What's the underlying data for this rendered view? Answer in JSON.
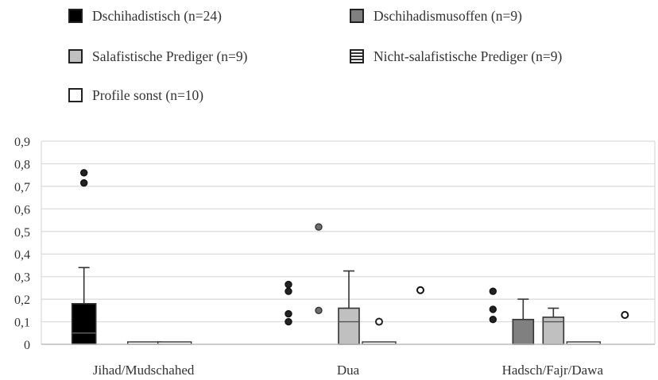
{
  "chart_data": {
    "type": "boxplot",
    "categories": [
      "Jihad/Mudschahed",
      "Dua",
      "Hadsch/Fajr/Dawa"
    ],
    "ylim": [
      0,
      0.9
    ],
    "yticks": [
      "0",
      "0,1",
      "0,2",
      "0,3",
      "0,4",
      "0,5",
      "0,6",
      "0,7",
      "0,8",
      "0,9"
    ],
    "grid": true,
    "legend_position": "top",
    "series": [
      {
        "name": "Dschihadistisch (n=24)",
        "fill": "#000000",
        "stroke": "#333333",
        "pattern": "solid",
        "boxes": [
          {
            "category": 0,
            "q1": 0,
            "median": 0.05,
            "q3": 0.18,
            "whisker_low": 0,
            "whisker_high": 0.34,
            "outliers": [
              0.715,
              0.76
            ]
          },
          {
            "category": 1,
            "q1": 0,
            "median": 0,
            "q3": 0,
            "whisker_low": 0,
            "whisker_high": 0,
            "outliers": [
              0.1,
              0.135,
              0.235,
              0.265
            ]
          },
          {
            "category": 2,
            "q1": 0,
            "median": 0,
            "q3": 0,
            "whisker_low": 0,
            "whisker_high": 0,
            "outliers": [
              0.11,
              0.155,
              0.235
            ]
          }
        ]
      },
      {
        "name": "Dschihadismusoffen (n=9)",
        "fill": "#808080",
        "stroke": "#333333",
        "pattern": "solid",
        "boxes": [
          {
            "category": 0,
            "q1": 0,
            "median": 0,
            "q3": 0,
            "whisker_low": 0,
            "whisker_high": 0,
            "outliers": []
          },
          {
            "category": 1,
            "q1": 0,
            "median": 0,
            "q3": 0,
            "whisker_low": 0,
            "whisker_high": 0,
            "outliers": [
              0.15,
              0.52
            ]
          },
          {
            "category": 2,
            "q1": 0,
            "median": 0,
            "q3": 0.11,
            "whisker_low": 0,
            "whisker_high": 0.2,
            "outliers": []
          }
        ]
      },
      {
        "name": "Salafistische Prediger (n=9)",
        "fill": "#c0c0c0",
        "stroke": "#333333",
        "pattern": "solid",
        "boxes": [
          {
            "category": 0,
            "q1": 0,
            "median": 0,
            "q3": 0,
            "whisker_low": 0,
            "whisker_high": 0,
            "outliers": []
          },
          {
            "category": 1,
            "q1": 0,
            "median": 0.1,
            "q3": 0.16,
            "whisker_low": 0,
            "whisker_high": 0.325,
            "outliers": []
          },
          {
            "category": 2,
            "q1": 0,
            "median": 0.1,
            "q3": 0.12,
            "whisker_low": 0,
            "whisker_high": 0.16,
            "outliers": []
          }
        ]
      },
      {
        "name": "Nicht-salafistische Prediger (n=9)",
        "fill": "#ffffff",
        "stroke": "#333333",
        "pattern": "striped",
        "boxes": [
          {
            "category": 0,
            "q1": 0,
            "median": 0,
            "q3": 0,
            "whisker_low": 0,
            "whisker_high": 0,
            "outliers": []
          },
          {
            "category": 1,
            "q1": 0,
            "median": 0,
            "q3": 0,
            "whisker_low": 0,
            "whisker_high": 0,
            "outliers": [
              0.1
            ]
          },
          {
            "category": 2,
            "q1": 0,
            "median": 0,
            "q3": 0,
            "whisker_low": 0,
            "whisker_high": 0,
            "outliers": []
          }
        ]
      },
      {
        "name": "Profile sonst (n=10)",
        "fill": "#ffffff",
        "stroke": "#222222",
        "pattern": "hollow",
        "boxes": [
          {
            "category": 0,
            "q1": 0,
            "median": 0,
            "q3": 0,
            "whisker_low": 0,
            "whisker_high": 0,
            "outliers": []
          },
          {
            "category": 1,
            "q1": 0,
            "median": 0,
            "q3": 0,
            "whisker_low": 0,
            "whisker_high": 0,
            "outliers": [
              0.24
            ]
          },
          {
            "category": 2,
            "q1": 0,
            "median": 0,
            "q3": 0,
            "whisker_low": 0,
            "whisker_high": 0,
            "outliers": [
              0.13
            ]
          }
        ]
      }
    ]
  }
}
